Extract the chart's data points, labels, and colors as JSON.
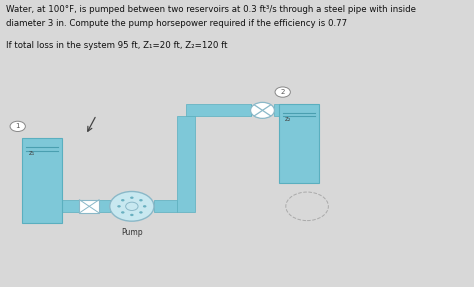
{
  "bg_color": "#d8d8d8",
  "title_line1": "Water, at 100°F, is pumped between two reservoirs at 0.3 ft³/s through a steel pipe with inside",
  "title_line2": "diameter 3 in. Compute the pump horsepower required if the efficiency is 0.77",
  "subtitle": "If total loss in the system 95 ft, Z₁=20 ft, Z₂=120 ft",
  "pipe_color": "#7ec8d8",
  "pipe_edge": "#5aafbf",
  "tank_color": "#7ec8d8",
  "tank_edge": "#5aafbf",
  "pump_face": "#c8e8f0",
  "pump_edge": "#8ab8c8",
  "valve_face": "#ffffff",
  "valve_edge": "#8ab8c8",
  "node_face": "#ffffff",
  "node_edge": "#888888",
  "text_color": "#333333",
  "pw": 0.042
}
